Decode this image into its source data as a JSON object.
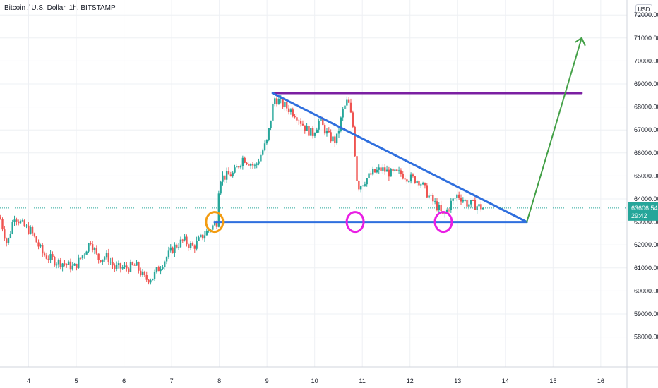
{
  "header": {
    "title": "Bitcoin / U.S. Dollar, 1h, BITSTAMP",
    "currency": "USD"
  },
  "colors": {
    "up": "#26a69a",
    "down": "#ef5350",
    "trend": "#2f6fde",
    "resistance": "#7b1fa2",
    "arrow": "#43a047",
    "circle_orange": "#f39c12",
    "circle_magenta": "#e91ee4",
    "price_badge": "#26a69a"
  },
  "chart_data": {
    "type": "candlestick",
    "x_axis": {
      "ticks": [
        "4",
        "5",
        "6",
        "7",
        "8",
        "9",
        "10",
        "11",
        "12",
        "13",
        "14",
        "15",
        "16"
      ],
      "range": [
        3.4,
        16.55
      ]
    },
    "y_axis": {
      "ticks": [
        "72000.00",
        "71000.00",
        "70000.00",
        "69000.00",
        "68000.00",
        "67000.00",
        "66000.00",
        "65000.00",
        "64000.00",
        "63000.00",
        "62000.00",
        "61000.00",
        "60000.00",
        "59000.00",
        "58000.00"
      ],
      "range": [
        56700,
        72650
      ]
    },
    "last_price": "63606.54",
    "countdown": "29:42",
    "path": [
      [
        3.4,
        63200
      ],
      [
        3.55,
        62000
      ],
      [
        3.7,
        63300
      ],
      [
        3.9,
        62800
      ],
      [
        4.05,
        62600
      ],
      [
        4.3,
        61600
      ],
      [
        4.55,
        61300
      ],
      [
        4.75,
        61200
      ],
      [
        4.95,
        61000
      ],
      [
        5.15,
        61600
      ],
      [
        5.3,
        62200
      ],
      [
        5.45,
        61400
      ],
      [
        5.65,
        61500
      ],
      [
        5.8,
        61000
      ],
      [
        6.05,
        61000
      ],
      [
        6.25,
        61100
      ],
      [
        6.45,
        60500
      ],
      [
        6.6,
        60600
      ],
      [
        6.8,
        61200
      ],
      [
        7.05,
        61900
      ],
      [
        7.25,
        62200
      ],
      [
        7.45,
        61900
      ],
      [
        7.7,
        62500
      ],
      [
        7.95,
        63000
      ],
      [
        8.0,
        64900
      ],
      [
        8.3,
        65100
      ],
      [
        8.5,
        65800
      ],
      [
        8.75,
        65400
      ],
      [
        9.0,
        66500
      ],
      [
        9.08,
        67500
      ],
      [
        9.15,
        68400
      ],
      [
        9.4,
        68000
      ],
      [
        9.6,
        67700
      ],
      [
        9.8,
        67100
      ],
      [
        9.95,
        66800
      ],
      [
        10.1,
        67400
      ],
      [
        10.3,
        66700
      ],
      [
        10.45,
        66500
      ],
      [
        10.6,
        67900
      ],
      [
        10.7,
        68300
      ],
      [
        10.8,
        67200
      ],
      [
        10.9,
        64500
      ],
      [
        11.0,
        64700
      ],
      [
        11.2,
        65100
      ],
      [
        11.4,
        65300
      ],
      [
        11.6,
        65100
      ],
      [
        11.8,
        65100
      ],
      [
        12.0,
        64900
      ],
      [
        12.2,
        64800
      ],
      [
        12.4,
        64100
      ],
      [
        12.6,
        63600
      ],
      [
        12.7,
        63200
      ],
      [
        12.85,
        63800
      ],
      [
        13.0,
        64200
      ],
      [
        13.2,
        63800
      ],
      [
        13.4,
        63700
      ],
      [
        13.55,
        63606
      ]
    ],
    "drawings": {
      "resistance_line": {
        "from": [
          9.12,
          68600
        ],
        "to": [
          15.6,
          68600
        ]
      },
      "descending_line": {
        "from": [
          9.12,
          68600
        ],
        "to": [
          14.45,
          63000
        ]
      },
      "support_line": {
        "from": [
          7.9,
          63000
        ],
        "to": [
          14.45,
          63000
        ]
      },
      "arrow": {
        "from": [
          14.45,
          63000
        ],
        "to": [
          15.6,
          71000
        ]
      },
      "circles": [
        {
          "at": [
            7.9,
            63000
          ],
          "color": "orange"
        },
        {
          "at": [
            10.85,
            63000
          ],
          "color": "magenta"
        },
        {
          "at": [
            12.7,
            63000
          ],
          "color": "magenta"
        }
      ]
    },
    "grid": true
  }
}
